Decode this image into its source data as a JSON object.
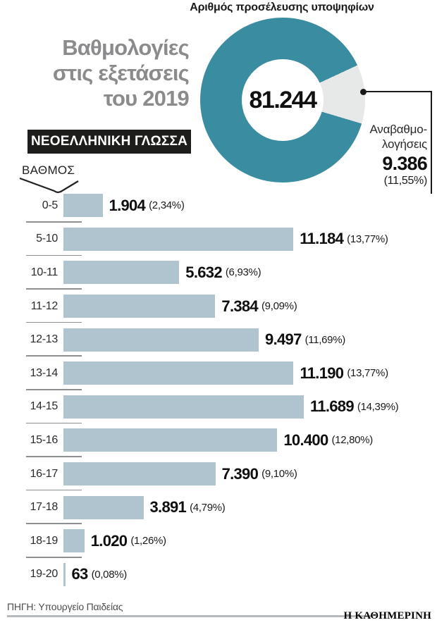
{
  "page": {
    "title_lines": [
      "Βαθμολογίες",
      "στις εξετάσεις",
      "του 2019"
    ],
    "subject_badge": "ΝΕΟΕΛΛΗΝΙΚΗ ΓΛΩΣΣΑ",
    "axis_label": "ΒΑΘΜΟΣ"
  },
  "chart_data": [
    {
      "type": "pie",
      "subtype": "donut",
      "title": "Αριθμός προσέλευσης υποψηφίων",
      "center_value": 81244,
      "center_label": "81.244",
      "highlighted_slice": {
        "label": "Αναβαθμολογήσεις",
        "value": 9386,
        "value_label": "9.386",
        "pct": 11.55,
        "pct_label": "(11,55%)"
      },
      "callout": {
        "line1": "Αναβαθμο-",
        "line2": "λογήσεις",
        "value": "9.386",
        "pct": "(11,55%)"
      },
      "colors": {
        "ring": "#3a8ca0",
        "slice": "#e7e8e8"
      },
      "slice_start_deg": 65,
      "slice_end_deg": 106.6
    },
    {
      "type": "bar",
      "orientation": "horizontal",
      "ylabel": "ΒΑΘΜΟΣ",
      "categories": [
        "0-5",
        "5-10",
        "10-11",
        "11-12",
        "12-13",
        "13-14",
        "14-15",
        "15-16",
        "16-17",
        "17-18",
        "18-19",
        "19-20"
      ],
      "values": [
        1904,
        11184,
        5632,
        7384,
        9497,
        11190,
        11689,
        10400,
        7390,
        3891,
        1020,
        63
      ],
      "value_labels": [
        "1.904",
        "11.184",
        "5.632",
        "7.384",
        "9.497",
        "11.190",
        "11.689",
        "10.400",
        "7.390",
        "3.891",
        "1.020",
        "63"
      ],
      "pct_labels": [
        "(2,34%)",
        "(13,77%)",
        "(6,93%)",
        "(9,09%)",
        "(11,69%)",
        "(13,77%)",
        "(14,39%)",
        "(12,80%)",
        "(9,10%)",
        "(4,79%)",
        "(1,26%)",
        "(0,08%)"
      ],
      "bar_color": "#b0c4d0",
      "xlim": [
        0,
        11689
      ],
      "grid": false,
      "legend": false
    }
  ],
  "footer": {
    "source": "ΠΗΓΗ: Υπουργείο Παιδείας",
    "brand": "Η ΚΑΘΗΜΕΡΙΝΗ"
  }
}
